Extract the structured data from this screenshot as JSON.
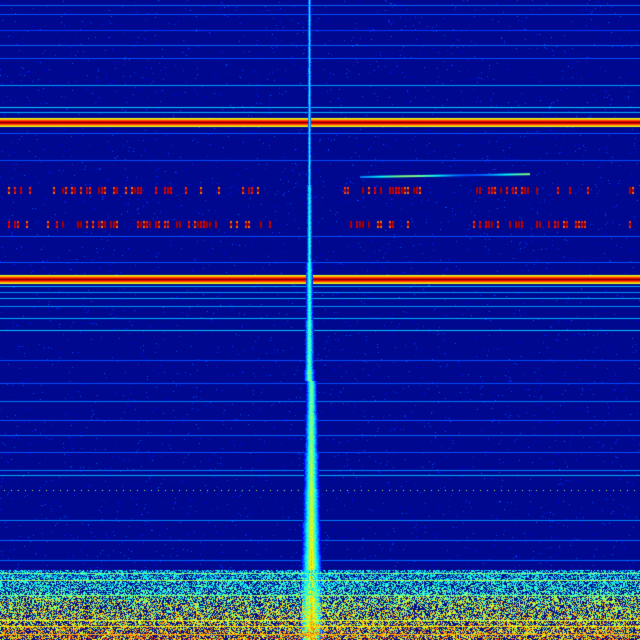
{
  "image": {
    "kind": "spectrogram",
    "colormap": "jet",
    "colors": {
      "background": "#00088f",
      "line_blue": "#0a3cff",
      "line_cyan": "#22b8ff",
      "hot_red": "#c00000",
      "hot_orange": "#ff8c00",
      "hot_yellow": "#f2f200",
      "vertical_trace": "#3fe0ff"
    }
  }
}
